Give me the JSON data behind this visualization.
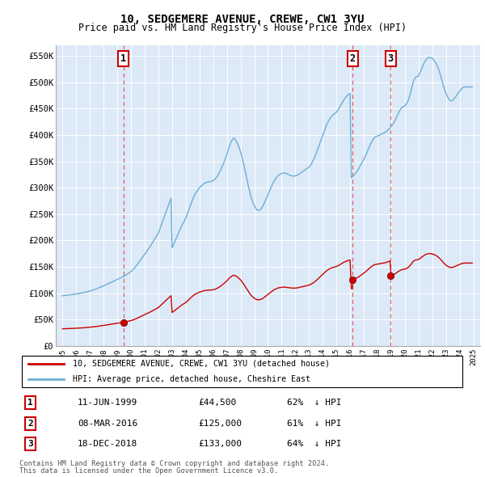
{
  "title": "10, SEDGEMERE AVENUE, CREWE, CW1 3YU",
  "subtitle": "Price paid vs. HM Land Registry's House Price Index (HPI)",
  "hpi_label": "HPI: Average price, detached house, Cheshire East",
  "property_label": "10, SEDGEMERE AVENUE, CREWE, CW1 3YU (detached house)",
  "footnote1": "Contains HM Land Registry data © Crown copyright and database right 2024.",
  "footnote2": "This data is licensed under the Open Government Licence v3.0.",
  "xlim": [
    1994.5,
    2025.5
  ],
  "ylim": [
    0,
    570000
  ],
  "yticks": [
    0,
    50000,
    100000,
    150000,
    200000,
    250000,
    300000,
    350000,
    400000,
    450000,
    500000,
    550000
  ],
  "ytick_labels": [
    "£0",
    "£50K",
    "£100K",
    "£150K",
    "£200K",
    "£250K",
    "£300K",
    "£350K",
    "£400K",
    "£450K",
    "£500K",
    "£550K"
  ],
  "xticks": [
    1995,
    1996,
    1997,
    1998,
    1999,
    2000,
    2001,
    2002,
    2003,
    2004,
    2005,
    2006,
    2007,
    2008,
    2009,
    2010,
    2011,
    2012,
    2013,
    2014,
    2015,
    2016,
    2017,
    2018,
    2019,
    2020,
    2021,
    2022,
    2023,
    2024,
    2025
  ],
  "hpi_color": "#6baed6",
  "property_color": "#cc0000",
  "dashed_color": "#e06060",
  "marker_color": "#800000",
  "bg_color": "#dce9f7",
  "sales": [
    {
      "num": 1,
      "year": 1999.44,
      "price": 44500,
      "date": "11-JUN-1999",
      "pct": "62%",
      "dir": "↓"
    },
    {
      "num": 2,
      "year": 2016.18,
      "price": 125000,
      "date": "08-MAR-2016",
      "pct": "61%",
      "dir": "↓"
    },
    {
      "num": 3,
      "year": 2018.96,
      "price": 133000,
      "date": "18-DEC-2018",
      "pct": "64%",
      "dir": "↓"
    }
  ],
  "hpi_x": [
    1995.0,
    1995.083,
    1995.167,
    1995.25,
    1995.333,
    1995.417,
    1995.5,
    1995.583,
    1995.667,
    1995.75,
    1995.833,
    1995.917,
    1996.0,
    1996.083,
    1996.167,
    1996.25,
    1996.333,
    1996.417,
    1996.5,
    1996.583,
    1996.667,
    1996.75,
    1996.833,
    1996.917,
    1997.0,
    1997.083,
    1997.167,
    1997.25,
    1997.333,
    1997.417,
    1997.5,
    1997.583,
    1997.667,
    1997.75,
    1997.833,
    1997.917,
    1998.0,
    1998.083,
    1998.167,
    1998.25,
    1998.333,
    1998.417,
    1998.5,
    1998.583,
    1998.667,
    1998.75,
    1998.833,
    1998.917,
    1999.0,
    1999.083,
    1999.167,
    1999.25,
    1999.333,
    1999.417,
    1999.5,
    1999.583,
    1999.667,
    1999.75,
    1999.833,
    1999.917,
    2000.0,
    2000.083,
    2000.167,
    2000.25,
    2000.333,
    2000.417,
    2000.5,
    2000.583,
    2000.667,
    2000.75,
    2000.833,
    2000.917,
    2001.0,
    2001.083,
    2001.167,
    2001.25,
    2001.333,
    2001.417,
    2001.5,
    2001.583,
    2001.667,
    2001.75,
    2001.833,
    2001.917,
    2002.0,
    2002.083,
    2002.167,
    2002.25,
    2002.333,
    2002.417,
    2002.5,
    2002.583,
    2002.667,
    2002.75,
    2002.833,
    2002.917,
    2003.0,
    2003.083,
    2003.167,
    2003.25,
    2003.333,
    2003.417,
    2003.5,
    2003.583,
    2003.667,
    2003.75,
    2003.833,
    2003.917,
    2004.0,
    2004.083,
    2004.167,
    2004.25,
    2004.333,
    2004.417,
    2004.5,
    2004.583,
    2004.667,
    2004.75,
    2004.833,
    2004.917,
    2005.0,
    2005.083,
    2005.167,
    2005.25,
    2005.333,
    2005.417,
    2005.5,
    2005.583,
    2005.667,
    2005.75,
    2005.833,
    2005.917,
    2006.0,
    2006.083,
    2006.167,
    2006.25,
    2006.333,
    2006.417,
    2006.5,
    2006.583,
    2006.667,
    2006.75,
    2006.833,
    2006.917,
    2007.0,
    2007.083,
    2007.167,
    2007.25,
    2007.333,
    2007.417,
    2007.5,
    2007.583,
    2007.667,
    2007.75,
    2007.833,
    2007.917,
    2008.0,
    2008.083,
    2008.167,
    2008.25,
    2008.333,
    2008.417,
    2008.5,
    2008.583,
    2008.667,
    2008.75,
    2008.833,
    2008.917,
    2009.0,
    2009.083,
    2009.167,
    2009.25,
    2009.333,
    2009.417,
    2009.5,
    2009.583,
    2009.667,
    2009.75,
    2009.833,
    2009.917,
    2010.0,
    2010.083,
    2010.167,
    2010.25,
    2010.333,
    2010.417,
    2010.5,
    2010.583,
    2010.667,
    2010.75,
    2010.833,
    2010.917,
    2011.0,
    2011.083,
    2011.167,
    2011.25,
    2011.333,
    2011.417,
    2011.5,
    2011.583,
    2011.667,
    2011.75,
    2011.833,
    2011.917,
    2012.0,
    2012.083,
    2012.167,
    2012.25,
    2012.333,
    2012.417,
    2012.5,
    2012.583,
    2012.667,
    2012.75,
    2012.833,
    2012.917,
    2013.0,
    2013.083,
    2013.167,
    2013.25,
    2013.333,
    2013.417,
    2013.5,
    2013.583,
    2013.667,
    2013.75,
    2013.833,
    2013.917,
    2014.0,
    2014.083,
    2014.167,
    2014.25,
    2014.333,
    2014.417,
    2014.5,
    2014.583,
    2014.667,
    2014.75,
    2014.833,
    2014.917,
    2015.0,
    2015.083,
    2015.167,
    2015.25,
    2015.333,
    2015.417,
    2015.5,
    2015.583,
    2015.667,
    2015.75,
    2015.833,
    2015.917,
    2016.0,
    2016.083,
    2016.167,
    2016.25,
    2016.333,
    2016.417,
    2016.5,
    2016.583,
    2016.667,
    2016.75,
    2016.833,
    2016.917,
    2017.0,
    2017.083,
    2017.167,
    2017.25,
    2017.333,
    2017.417,
    2017.5,
    2017.583,
    2017.667,
    2017.75,
    2017.833,
    2017.917,
    2018.0,
    2018.083,
    2018.167,
    2018.25,
    2018.333,
    2018.417,
    2018.5,
    2018.583,
    2018.667,
    2018.75,
    2018.833,
    2018.917,
    2019.0,
    2019.083,
    2019.167,
    2019.25,
    2019.333,
    2019.417,
    2019.5,
    2019.583,
    2019.667,
    2019.75,
    2019.833,
    2019.917,
    2020.0,
    2020.083,
    2020.167,
    2020.25,
    2020.333,
    2020.417,
    2020.5,
    2020.583,
    2020.667,
    2020.75,
    2020.833,
    2020.917,
    2021.0,
    2021.083,
    2021.167,
    2021.25,
    2021.333,
    2021.417,
    2021.5,
    2021.583,
    2021.667,
    2021.75,
    2021.833,
    2021.917,
    2022.0,
    2022.083,
    2022.167,
    2022.25,
    2022.333,
    2022.417,
    2022.5,
    2022.583,
    2022.667,
    2022.75,
    2022.833,
    2022.917,
    2023.0,
    2023.083,
    2023.167,
    2023.25,
    2023.333,
    2023.417,
    2023.5,
    2023.583,
    2023.667,
    2023.75,
    2023.833,
    2023.917,
    2024.0,
    2024.083,
    2024.167,
    2024.25,
    2024.333,
    2024.417,
    2024.5,
    2024.583,
    2024.667,
    2024.75,
    2024.833,
    2024.917
  ],
  "hpi_y": [
    95000,
    95200,
    95500,
    95700,
    96000,
    96200,
    96500,
    96800,
    97100,
    97400,
    97700,
    98000,
    98300,
    98600,
    99000,
    99400,
    99800,
    100200,
    100700,
    101200,
    101700,
    102200,
    102800,
    103400,
    104000,
    104700,
    105400,
    106100,
    106900,
    107700,
    108500,
    109300,
    110200,
    111100,
    112000,
    113000,
    114000,
    115000,
    116000,
    117000,
    118000,
    119000,
    120000,
    121000,
    122000,
    123000,
    124000,
    125000,
    126000,
    127000,
    128000,
    129000,
    130000,
    131000,
    132000,
    133500,
    135000,
    136500,
    138000,
    139500,
    141000,
    143000,
    145000,
    147500,
    150000,
    153000,
    156000,
    159000,
    162000,
    165000,
    168000,
    171000,
    174000,
    177000,
    180000,
    183000,
    186000,
    189500,
    193000,
    196500,
    200000,
    203500,
    207000,
    210500,
    214000,
    220000,
    226000,
    232000,
    238000,
    244000,
    250000,
    256000,
    262000,
    268000,
    274000,
    280000,
    186000,
    191000,
    196000,
    201000,
    206000,
    211000,
    216000,
    221000,
    226000,
    230000,
    234000,
    238000,
    242000,
    248000,
    254000,
    260000,
    266000,
    272000,
    278000,
    283000,
    287000,
    291000,
    294000,
    297000,
    300000,
    302000,
    304000,
    306000,
    308000,
    309000,
    310000,
    310500,
    311000,
    311500,
    312000,
    312500,
    313000,
    315000,
    317000,
    320000,
    323000,
    327000,
    331000,
    336000,
    341000,
    346000,
    351000,
    357000,
    363000,
    370000,
    377000,
    383000,
    388000,
    392000,
    394000,
    392000,
    389000,
    385000,
    380000,
    374000,
    368000,
    360000,
    351000,
    342000,
    332000,
    322000,
    311000,
    301000,
    292000,
    284000,
    277000,
    271000,
    266000,
    262000,
    259000,
    257000,
    257000,
    258000,
    260000,
    263000,
    267000,
    272000,
    277000,
    282000,
    287000,
    292000,
    297000,
    302000,
    307000,
    311000,
    315000,
    318000,
    321000,
    323000,
    325000,
    326000,
    327000,
    327500,
    328000,
    327500,
    327000,
    326000,
    325000,
    324000,
    323000,
    322500,
    322000,
    322000,
    322500,
    323000,
    324000,
    325500,
    327000,
    328500,
    330000,
    331500,
    333000,
    334500,
    336000,
    337500,
    339000,
    342000,
    345000,
    349000,
    353000,
    358000,
    363000,
    369000,
    375000,
    381000,
    387000,
    393000,
    399000,
    405000,
    411000,
    417000,
    422000,
    426000,
    430000,
    433000,
    436000,
    438000,
    440000,
    441500,
    443000,
    446000,
    449000,
    453000,
    457000,
    461000,
    465000,
    468000,
    471000,
    473500,
    476000,
    477500,
    479000,
    319000,
    321000,
    323000,
    325000,
    328000,
    331000,
    334000,
    338000,
    342000,
    346000,
    350000,
    354000,
    358000,
    363000,
    368000,
    373000,
    378000,
    383000,
    387000,
    391000,
    394000,
    396000,
    397000,
    398000,
    399000,
    400000,
    401000,
    402000,
    403000,
    404000,
    405000,
    407000,
    409000,
    411000,
    413000,
    416000,
    419000,
    422000,
    426000,
    430000,
    435000,
    440000,
    444000,
    448000,
    451000,
    453000,
    454000,
    455000,
    458000,
    461000,
    466000,
    472000,
    480000,
    489000,
    498000,
    504000,
    508000,
    510000,
    511000,
    512000,
    517000,
    522000,
    527000,
    532000,
    537000,
    541000,
    544000,
    546000,
    547000,
    547000,
    546000,
    545000,
    543000,
    540000,
    537000,
    533000,
    528000,
    522000,
    515000,
    507000,
    499000,
    492000,
    485000,
    479000,
    474000,
    470000,
    467000,
    465000,
    465000,
    466000,
    468000,
    471000,
    474000,
    477000,
    480000,
    483000,
    486000,
    488000,
    490000,
    491000,
    491000,
    491000,
    491000,
    491000,
    491000,
    491000,
    491000,
    491000,
    492000,
    493000,
    494000,
    495000,
    496000,
    497000,
    498000,
    499000,
    480000
  ]
}
